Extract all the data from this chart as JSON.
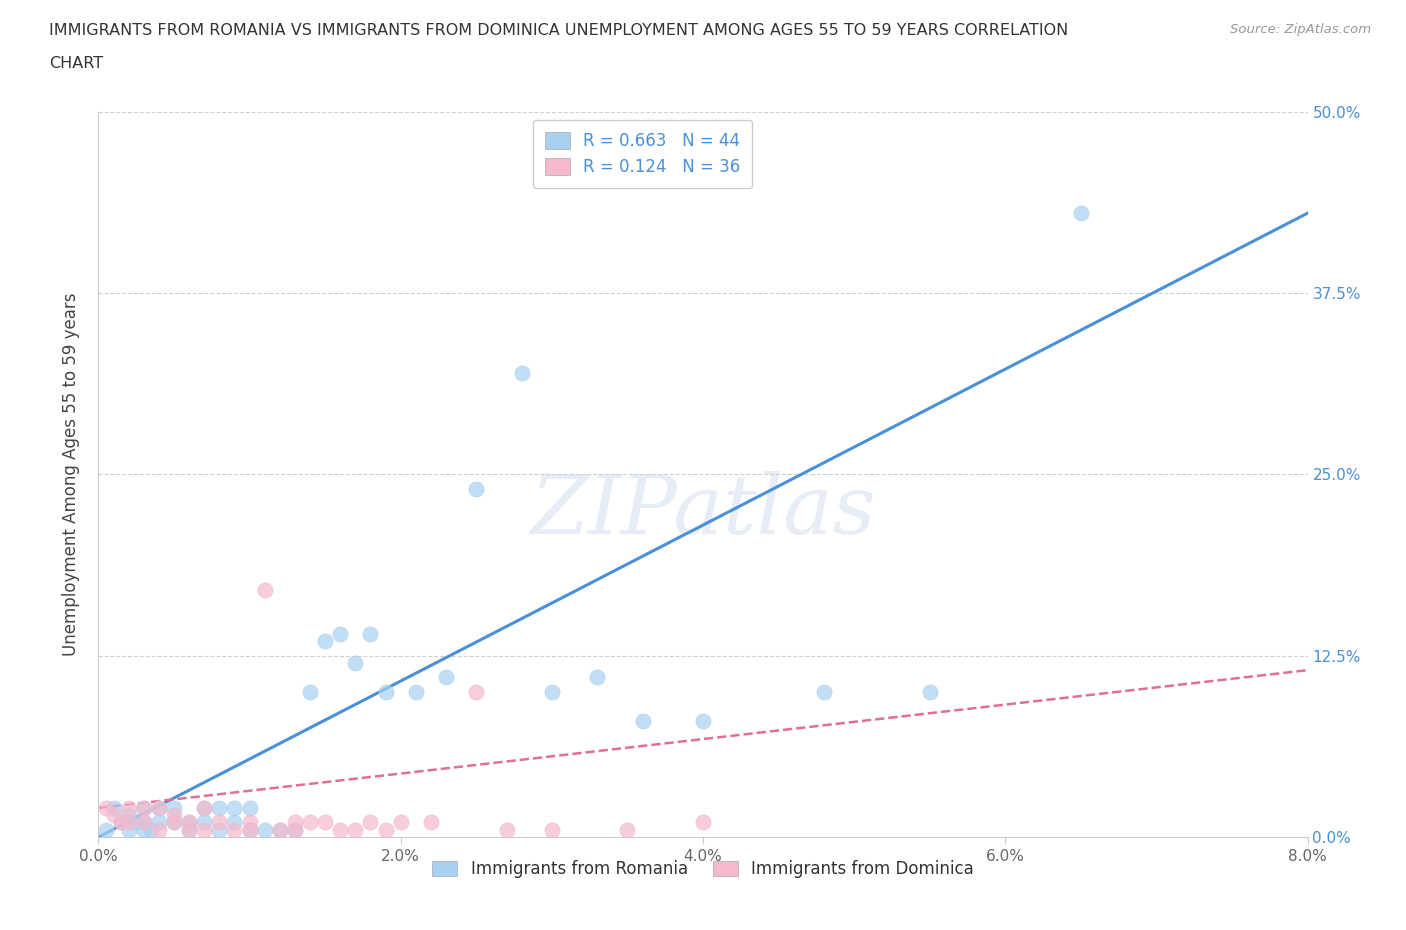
{
  "title_line1": "IMMIGRANTS FROM ROMANIA VS IMMIGRANTS FROM DOMINICA UNEMPLOYMENT AMONG AGES 55 TO 59 YEARS CORRELATION",
  "title_line2": "CHART",
  "source": "Source: ZipAtlas.com",
  "ylabel": "Unemployment Among Ages 55 to 59 years",
  "xlim": [
    0.0,
    0.08
  ],
  "ylim": [
    0.0,
    0.5
  ],
  "xticks": [
    0.0,
    0.02,
    0.04,
    0.06,
    0.08
  ],
  "xtick_labels": [
    "0.0%",
    "2.0%",
    "4.0%",
    "6.0%",
    "8.0%"
  ],
  "yticks": [
    0.0,
    0.125,
    0.25,
    0.375,
    0.5
  ],
  "ytick_labels": [
    "0.0%",
    "12.5%",
    "25.0%",
    "37.5%",
    "50.0%"
  ],
  "romania_R": 0.663,
  "romania_N": 44,
  "dominica_R": 0.124,
  "dominica_N": 36,
  "romania_color": "#a8d0f0",
  "dominica_color": "#f5b8cc",
  "romania_line_color": "#4a90d9",
  "dominica_line_color": "#e07090",
  "romania_scatter_x": [
    0.0005,
    0.001,
    0.0015,
    0.002,
    0.002,
    0.0025,
    0.003,
    0.003,
    0.003,
    0.0035,
    0.004,
    0.004,
    0.005,
    0.005,
    0.006,
    0.006,
    0.007,
    0.007,
    0.008,
    0.008,
    0.009,
    0.009,
    0.01,
    0.01,
    0.011,
    0.012,
    0.013,
    0.014,
    0.015,
    0.016,
    0.017,
    0.018,
    0.019,
    0.021,
    0.023,
    0.025,
    0.028,
    0.03,
    0.033,
    0.036,
    0.04,
    0.048,
    0.055,
    0.065
  ],
  "romania_scatter_y": [
    0.005,
    0.02,
    0.01,
    0.005,
    0.015,
    0.01,
    0.005,
    0.02,
    0.01,
    0.005,
    0.01,
    0.02,
    0.01,
    0.02,
    0.005,
    0.01,
    0.02,
    0.01,
    0.005,
    0.02,
    0.01,
    0.02,
    0.005,
    0.02,
    0.005,
    0.005,
    0.005,
    0.1,
    0.135,
    0.14,
    0.12,
    0.14,
    0.1,
    0.1,
    0.11,
    0.24,
    0.32,
    0.1,
    0.11,
    0.08,
    0.08,
    0.1,
    0.1,
    0.43
  ],
  "dominica_scatter_x": [
    0.0005,
    0.001,
    0.0015,
    0.002,
    0.002,
    0.003,
    0.003,
    0.004,
    0.004,
    0.005,
    0.005,
    0.006,
    0.006,
    0.007,
    0.007,
    0.008,
    0.009,
    0.01,
    0.01,
    0.011,
    0.012,
    0.013,
    0.013,
    0.014,
    0.015,
    0.016,
    0.017,
    0.018,
    0.019,
    0.02,
    0.022,
    0.025,
    0.027,
    0.03,
    0.035,
    0.04
  ],
  "dominica_scatter_y": [
    0.02,
    0.015,
    0.01,
    0.02,
    0.01,
    0.02,
    0.01,
    0.005,
    0.02,
    0.01,
    0.015,
    0.005,
    0.01,
    0.02,
    0.005,
    0.01,
    0.005,
    0.01,
    0.005,
    0.17,
    0.005,
    0.01,
    0.005,
    0.01,
    0.01,
    0.005,
    0.005,
    0.01,
    0.005,
    0.01,
    0.01,
    0.1,
    0.005,
    0.005,
    0.005,
    0.01
  ],
  "watermark": "ZIPatlas",
  "legend_label_romania": "Immigrants from Romania",
  "legend_label_dominica": "Immigrants from Dominica",
  "background_color": "#ffffff",
  "grid_color": "#d0d0d0"
}
